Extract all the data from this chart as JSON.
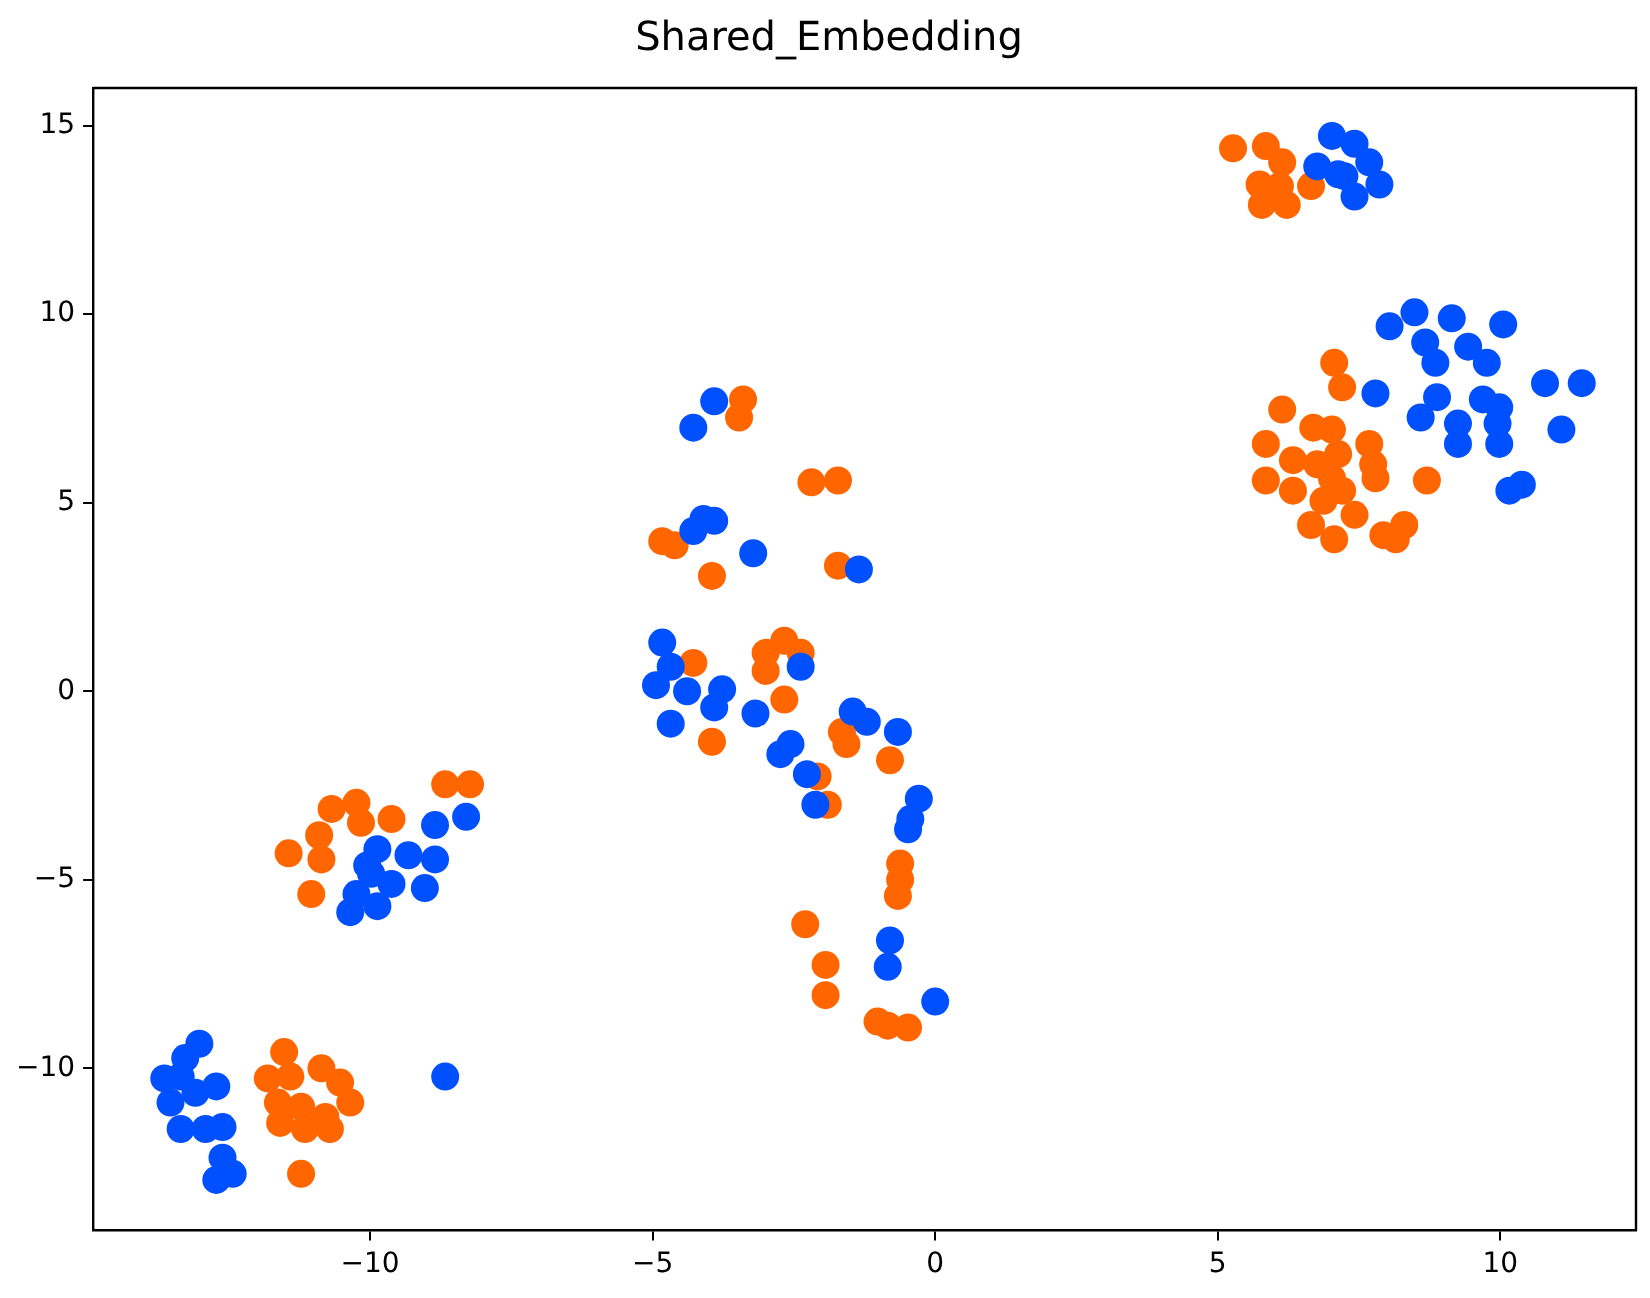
{
  "chart_data": {
    "type": "scatter",
    "title": "Shared_Embedding",
    "xlim": [
      -14.9,
      12.4
    ],
    "ylim": [
      -14.3,
      16
    ],
    "xticks": [
      {
        "value": -10,
        "label": "−10"
      },
      {
        "value": -5,
        "label": "−5"
      },
      0,
      5,
      10
    ],
    "yticks": [
      {
        "value": -10,
        "label": "−10"
      },
      {
        "value": -5,
        "label": "−5"
      },
      0,
      5,
      10,
      15
    ],
    "grid": false,
    "legend": false,
    "marker": "circle",
    "series": [
      {
        "color": "#0050ff",
        "x": [
          7.02,
          7.42,
          7.68,
          6.76,
          7.13,
          7.86,
          7.42,
          7.24,
          8.04,
          8.48,
          9.14,
          10.05,
          8.67,
          9.43,
          9.76,
          8.85,
          7.79,
          8.88,
          9.69,
          9.98,
          10.79,
          11.44,
          8.59,
          9.25,
          9.95,
          11.08,
          9.25,
          9.98,
          10.16,
          10.38,
          -3.91,
          -4.28,
          -4.1,
          -3.91,
          -4.28,
          -3.22,
          -1.35,
          -4.83,
          -4.68,
          -4.94,
          -4.39,
          -3.77,
          -3.91,
          -3.18,
          -4.68,
          -2.38,
          -1.46,
          -1.21,
          -0.66,
          -2.74,
          -2.56,
          -2.27,
          -2.12,
          -0.29,
          -0.44,
          -0.48,
          -0.8,
          -0.84,
          0,
          -8.3,
          -8.85,
          -8.85,
          -9.03,
          -9.87,
          -9.32,
          -9.98,
          -9.62,
          -10.24,
          -9.87,
          -10.35,
          -10.05,
          -13.02,
          -13.27,
          -13.64,
          -13.35,
          -13.53,
          -13.09,
          -12.72,
          -13.35,
          -12.91,
          -12.61,
          -12.61,
          -12.72,
          -12.43,
          -8.67
        ],
        "values": [
          14.73,
          14.52,
          14.03,
          13.92,
          13.71,
          13.44,
          13.12,
          13.66,
          9.68,
          10.05,
          9.89,
          9.73,
          9.25,
          9.14,
          8.71,
          8.71,
          7.9,
          7.8,
          7.74,
          7.53,
          8.17,
          8.17,
          7.26,
          7.1,
          7.1,
          6.94,
          6.56,
          6.56,
          5.32,
          5.48,
          7.69,
          6.99,
          4.57,
          4.52,
          4.25,
          3.66,
          3.23,
          1.29,
          0.65,
          0.16,
          0,
          0.05,
          -0.43,
          -0.59,
          -0.86,
          0.65,
          -0.54,
          -0.81,
          -1.08,
          -1.67,
          -1.4,
          -2.2,
          -3.01,
          -2.85,
          -3.39,
          -3.66,
          -6.61,
          -7.31,
          -8.23,
          -3.33,
          -3.55,
          -4.46,
          -5.22,
          -4.19,
          -4.35,
          -4.84,
          -5.11,
          -5.38,
          -5.7,
          -5.86,
          -4.62,
          -9.35,
          -9.73,
          -10.27,
          -10.22,
          -10.91,
          -10.65,
          -10.48,
          -11.61,
          -11.61,
          -11.56,
          -12.37,
          -12.96,
          -12.8,
          -10.22
        ]
      },
      {
        "color": "#ff6600",
        "x": [
          5.27,
          5.85,
          6.14,
          5.74,
          6.22,
          5.78,
          6.65,
          6.1,
          7.06,
          7.2,
          6.14,
          5.85,
          6.69,
          7.02,
          7.68,
          6.33,
          6.76,
          7.13,
          7.75,
          5.85,
          6.33,
          7.02,
          7.2,
          7.79,
          8.7,
          6.87,
          7.42,
          6.65,
          7.06,
          7.93,
          8.3,
          8.15,
          -3.4,
          -3.47,
          -2.19,
          -1.72,
          -4.83,
          -4.61,
          -3.95,
          -1.72,
          -4.28,
          -2.67,
          -2.38,
          -3.0,
          -3.0,
          -2.67,
          -3.95,
          -1.65,
          -1.57,
          -0.8,
          -2.08,
          -1.9,
          -0.62,
          -0.62,
          -0.66,
          -2.3,
          -1.94,
          -1.94,
          -1.02,
          -0.84,
          -0.48,
          -11.44,
          -11.04,
          -10.86,
          -10.9,
          -10.68,
          -10.24,
          -10.16,
          -9.62,
          -8.67,
          -8.23,
          -11.52,
          -11.81,
          -11.41,
          -10.86,
          -10.53,
          -10.35,
          -11.63,
          -11.22,
          -10.79,
          -11.59,
          -11.15,
          -10.71,
          -11.22
        ],
        "values": [
          14.4,
          14.46,
          14.03,
          13.44,
          12.9,
          12.9,
          13.4,
          13.4,
          8.71,
          8.06,
          7.47,
          6.56,
          6.99,
          6.94,
          6.56,
          6.13,
          6.02,
          6.29,
          6.02,
          5.59,
          5.32,
          5.65,
          5.32,
          5.65,
          5.59,
          5.05,
          4.68,
          4.41,
          4.03,
          4.14,
          4.41,
          4.03,
          7.74,
          7.26,
          5.54,
          5.59,
          3.98,
          3.87,
          3.06,
          3.33,
          0.75,
          1.34,
          1.02,
          1.02,
          0.54,
          -0.22,
          -1.34,
          -1.08,
          -1.4,
          -1.83,
          -2.26,
          -3.01,
          -4.57,
          -5.0,
          -5.43,
          -6.18,
          -7.26,
          -8.06,
          -8.76,
          -8.87,
          -8.92,
          -4.3,
          -5.38,
          -4.46,
          -3.82,
          -3.12,
          -2.96,
          -3.49,
          -3.39,
          -2.47,
          -2.47,
          -9.57,
          -10.27,
          -10.22,
          -10.0,
          -10.38,
          -10.91,
          -10.91,
          -11.02,
          -11.29,
          -11.45,
          -11.61,
          -11.61,
          -12.8
        ]
      }
    ]
  }
}
